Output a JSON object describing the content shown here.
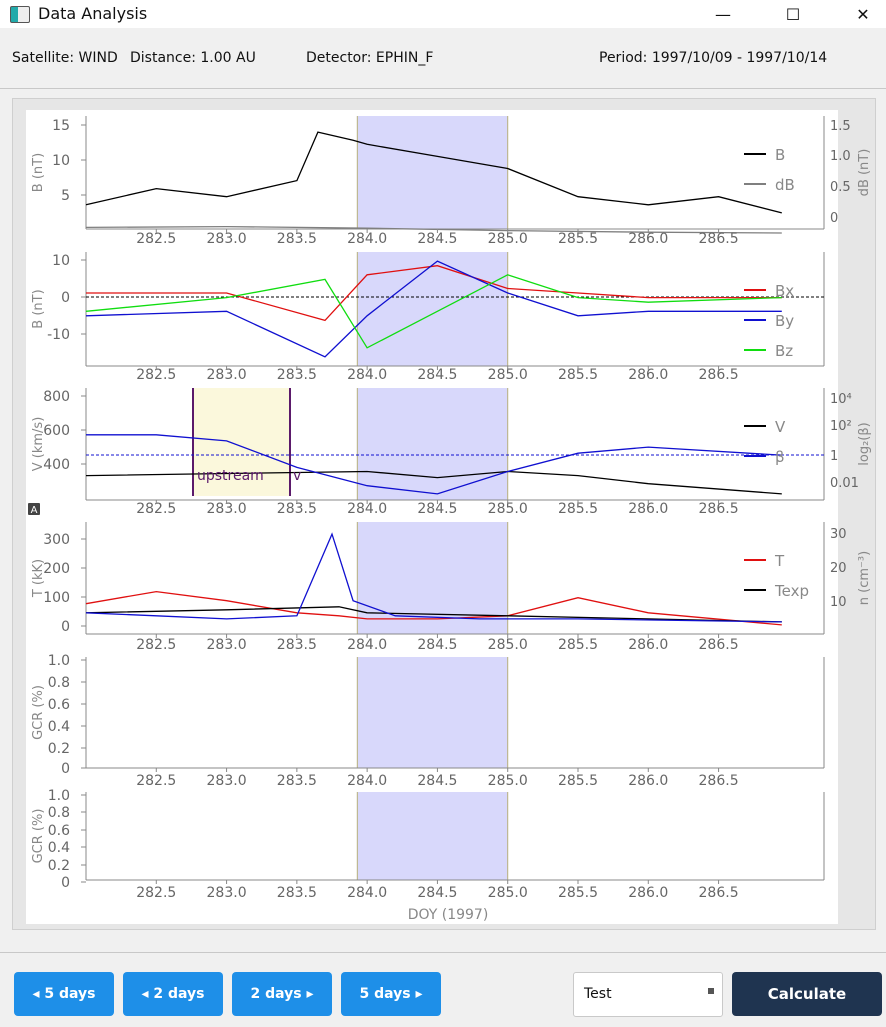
{
  "window": {
    "title": "Data Analysis",
    "icon": "app-window-icon",
    "minimize_glyph": "—",
    "maximize_glyph": "☐",
    "close_glyph": "✕"
  },
  "info": {
    "satellite": "Satellite: WIND",
    "distance": "Distance: 1.00 AU",
    "detector": "Detector: EPHIN_F",
    "period": "Period: 1997/10/09 - 1997/10/14"
  },
  "colors": {
    "shade": "#d8d8fb",
    "upstream": "#fbf8dc",
    "marker": "#5b1a6b",
    "nav": "#1e8fe8",
    "calc": "#1f3450",
    "red": "#e01010",
    "green": "#10dd10",
    "blue": "#1010d0"
  },
  "shade_interval": {
    "start": 283.93,
    "end": 285.0
  },
  "chart_data": [
    {
      "type": "line",
      "panel": "b-magnitude",
      "xlim": [
        282.0,
        287.25
      ],
      "ylabel": "B (nT)",
      "ylim": [
        2,
        16
      ],
      "yticks": [
        "15",
        "10",
        "5"
      ],
      "y2label": "dB (nT)",
      "y2ticks": [
        "1.5",
        "1.0",
        "0.5",
        "0"
      ],
      "legend": [
        "B",
        "dB"
      ],
      "series": [
        {
          "name": "B",
          "color": "#000000",
          "x": [
            282.0,
            282.5,
            283.0,
            283.5,
            283.65,
            283.9,
            284.0,
            284.5,
            285.0,
            285.5,
            286.0,
            286.5,
            286.95
          ],
          "y": [
            5,
            7,
            6,
            8,
            14,
            13,
            12.5,
            11,
            9.5,
            6,
            5,
            6,
            4
          ]
        },
        {
          "name": "dB",
          "color": "#7f7f7f",
          "x": [
            282.0,
            283.0,
            284.0,
            285.0,
            286.0,
            286.95
          ],
          "y": [
            2.2,
            2.3,
            2.1,
            1.8,
            1.6,
            1.5
          ]
        }
      ]
    },
    {
      "type": "line",
      "panel": "b-components",
      "xlim": [
        282.0,
        287.25
      ],
      "ylabel": "B (nT)",
      "ylim": [
        -14,
        11
      ],
      "yticks": [
        "10",
        "0",
        "-10"
      ],
      "legend": [
        "Bx",
        "By",
        "Bz"
      ],
      "series": [
        {
          "name": "Bx",
          "color": "#e01010",
          "x": [
            282.0,
            283.0,
            283.7,
            284.0,
            284.5,
            285.0,
            285.5,
            286.0,
            286.95
          ],
          "y": [
            2,
            2,
            -4,
            6,
            8,
            3,
            2,
            1,
            1
          ]
        },
        {
          "name": "By",
          "color": "#1010d0",
          "x": [
            282.0,
            283.0,
            283.7,
            284.0,
            284.5,
            285.0,
            285.5,
            286.0,
            286.95
          ],
          "y": [
            -3,
            -2,
            -12,
            -3,
            9,
            2,
            -3,
            -2,
            -2
          ]
        },
        {
          "name": "Bz",
          "color": "#10dd10",
          "x": [
            282.0,
            283.0,
            283.7,
            284.0,
            284.5,
            285.0,
            285.5,
            286.0,
            286.95
          ],
          "y": [
            -2,
            1,
            5,
            -10,
            -2,
            6,
            1,
            0,
            1
          ]
        }
      ]
    },
    {
      "type": "line",
      "panel": "velocity-beta",
      "xlim": [
        282.0,
        287.25
      ],
      "ylabel": "V (km/s)",
      "ylim": [
        300,
        850
      ],
      "yticks": [
        "800",
        "600",
        "400"
      ],
      "y2label": "log₂(β)",
      "y2ticks": [
        "10⁴",
        "10²",
        "1",
        "0.01"
      ],
      "legend": [
        "V",
        "β"
      ],
      "labels": {
        "upstream": "upstream",
        "v": "v"
      },
      "series": [
        {
          "name": "V",
          "color": "#000000",
          "x": [
            282.0,
            283.0,
            284.0,
            284.5,
            285.0,
            285.5,
            286.0,
            286.95
          ],
          "y": [
            420,
            430,
            440,
            410,
            440,
            420,
            380,
            330
          ]
        },
        {
          "name": "β",
          "color": "#1010d0",
          "x": [
            282.0,
            282.5,
            283.0,
            283.5,
            284.0,
            284.5,
            285.0,
            285.5,
            286.0,
            286.95
          ],
          "y": [
            620,
            620,
            590,
            460,
            370,
            330,
            440,
            530,
            560,
            520
          ]
        }
      ]
    },
    {
      "type": "line",
      "panel": "temperature-density",
      "xlim": [
        282.0,
        287.25
      ],
      "ylabel": "T (kK)",
      "ylim": [
        -10,
        360
      ],
      "yticks": [
        "300",
        "200",
        "100",
        "0"
      ],
      "y2label": "n (cm⁻³)",
      "y2ticks": [
        "30",
        "20",
        "10"
      ],
      "legend": [
        "T",
        "Texp"
      ],
      "series": [
        {
          "name": "T",
          "color": "#e01010",
          "x": [
            282.0,
            282.5,
            283.0,
            283.5,
            283.8,
            284.0,
            284.5,
            285.0,
            285.5,
            286.0,
            286.95
          ],
          "y": [
            90,
            130,
            100,
            60,
            50,
            40,
            40,
            50,
            110,
            60,
            20
          ]
        },
        {
          "name": "Texp",
          "color": "#000000",
          "x": [
            282.0,
            283.0,
            283.8,
            284.0,
            285.0,
            286.0,
            286.95
          ],
          "y": [
            60,
            70,
            80,
            60,
            50,
            40,
            30
          ]
        },
        {
          "name": "n",
          "color": "#1010d0",
          "x": [
            282.0,
            282.5,
            283.0,
            283.5,
            283.75,
            283.9,
            284.2,
            284.8,
            285.5,
            286.95
          ],
          "y": [
            60,
            50,
            40,
            50,
            320,
            100,
            50,
            40,
            40,
            30
          ]
        }
      ]
    },
    {
      "type": "line",
      "panel": "gcr-1",
      "xlim": [
        282.0,
        287.25
      ],
      "ylabel": "GCR (%)",
      "ylim": [
        0,
        1.0
      ],
      "yticks": [
        "1.0",
        "0.8",
        "0.6",
        "0.4",
        "0.2",
        "0"
      ],
      "series": []
    },
    {
      "type": "line",
      "panel": "gcr-2",
      "xlim": [
        282.0,
        287.25
      ],
      "ylabel": "GCR (%)",
      "ylim": [
        0,
        1.0
      ],
      "yticks": [
        "1.0",
        "0.8",
        "0.6",
        "0.4",
        "0.2",
        "0"
      ],
      "xlabel": "DOY (1997)",
      "series": []
    }
  ],
  "xticks": [
    "282.5",
    "283.0",
    "283.5",
    "284.0",
    "284.5",
    "285.0",
    "285.5",
    "286.0",
    "286.5"
  ],
  "controls": {
    "back5": "◂ 5 days",
    "back2": "◂ 2 days",
    "fwd2": "2 days ▸",
    "fwd5": "5 days ▸",
    "selection": "Test",
    "calculate": "Calculate"
  },
  "badge": "A"
}
